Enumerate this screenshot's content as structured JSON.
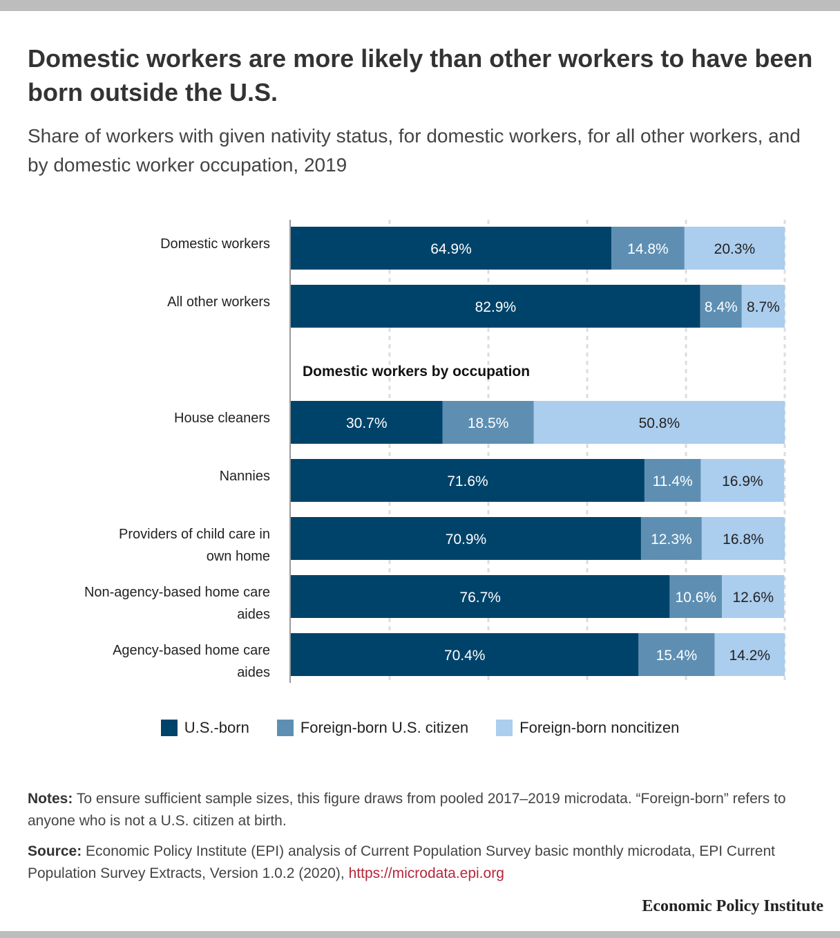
{
  "header": {
    "title": "Domestic workers are more likely than other workers to have been born outside the U.S.",
    "subtitle": "Share of workers with given nativity status, for domestic workers, for all other workers, and by domestic worker occupation, 2019"
  },
  "colors": {
    "us_born": "#00436a",
    "foreign_born_citizen": "#5e8fb3",
    "foreign_born_noncitizen": "#abcdee"
  },
  "chart_data": {
    "type": "bar",
    "orientation": "horizontal",
    "stacked": true,
    "section_label": "Domestic workers by occupation",
    "categories": [
      "Domestic workers",
      "All other workers",
      "House cleaners",
      "Nannies",
      "Providers of child care in own home",
      "Non-agency-based home care aides",
      "Agency-based home care aides"
    ],
    "series": [
      {
        "name": "U.S.-born",
        "values": [
          64.9,
          82.9,
          30.7,
          71.6,
          70.9,
          76.7,
          70.4
        ]
      },
      {
        "name": "Foreign-born U.S. citizen",
        "values": [
          14.8,
          8.4,
          18.5,
          11.4,
          12.3,
          10.6,
          15.4
        ]
      },
      {
        "name": "Foreign-born noncitizen",
        "values": [
          20.3,
          8.7,
          50.8,
          16.9,
          16.8,
          12.6,
          14.2
        ]
      }
    ],
    "value_suffix": "%",
    "xlim": [
      0,
      100
    ],
    "grid": true,
    "legend_position": "bottom"
  },
  "footer": {
    "notes_label": "Notes:",
    "notes_text": "To ensure sufficient sample sizes, this figure draws from pooled 2017–2019 microdata. “Foreign-born” refers to anyone who is not a U.S. citizen at birth.",
    "source_label": "Source:",
    "source_text": "Economic Policy Institute (EPI) analysis of Current Population Survey basic monthly microdata, EPI Current Population Survey Extracts, Version 1.0.2 (2020),",
    "source_link": "https://microdata.epi.org",
    "brand": "Economic Policy Institute"
  }
}
